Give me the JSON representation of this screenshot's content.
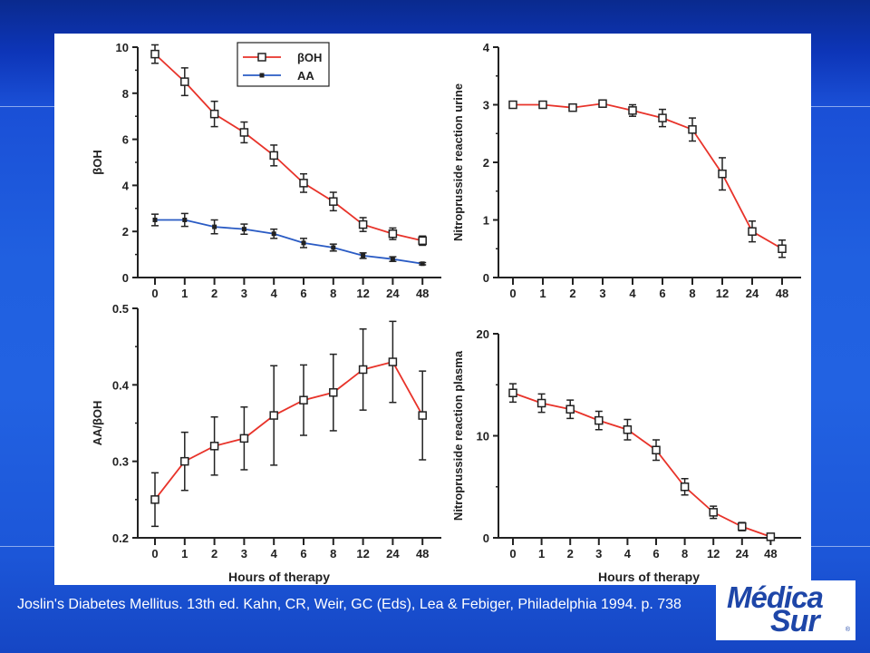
{
  "footer": {
    "citation": "Joslin's Diabetes Mellitus. 13th ed. Kahn, CR, Weir, GC (Eds), Lea & Febiger, Philadelphia 1994. p. 738"
  },
  "logo": {
    "line1": "Médica",
    "line2": "Sur",
    "mark": "®"
  },
  "colors": {
    "red": "#e8332a",
    "blue": "#2a5bc4",
    "axis": "#222222"
  },
  "chart_data": [
    {
      "id": "tl",
      "type": "line",
      "categories": [
        "0",
        "1",
        "2",
        "3",
        "4",
        "6",
        "8",
        "12",
        "24",
        "48"
      ],
      "ylabel": "βOH",
      "xlabel": "",
      "ylim": [
        0,
        10
      ],
      "yticks": [
        0,
        2,
        4,
        6,
        8,
        10
      ],
      "yticklabels": [
        "0",
        "2",
        "4",
        "6",
        "8",
        "10"
      ],
      "legend": "top-center",
      "series": [
        {
          "name": "βOH",
          "color": "red",
          "marker": "open-square",
          "values": [
            9.7,
            8.5,
            7.1,
            6.3,
            5.3,
            4.1,
            3.3,
            2.3,
            1.9,
            1.6
          ],
          "errors": [
            0.4,
            0.6,
            0.55,
            0.45,
            0.45,
            0.4,
            0.4,
            0.3,
            0.25,
            0.2
          ]
        },
        {
          "name": "AA",
          "color": "blue",
          "marker": "filled-square",
          "values": [
            2.5,
            2.5,
            2.2,
            2.1,
            1.9,
            1.5,
            1.3,
            0.95,
            0.8,
            0.6
          ],
          "errors": [
            0.25,
            0.28,
            0.3,
            0.22,
            0.2,
            0.2,
            0.15,
            0.12,
            0.1,
            0.05
          ]
        }
      ]
    },
    {
      "id": "tr",
      "type": "line",
      "categories": [
        "0",
        "1",
        "2",
        "3",
        "4",
        "6",
        "8",
        "12",
        "24",
        "48"
      ],
      "ylabel": "Nitroprusside reaction urine",
      "xlabel": "",
      "ylim": [
        0,
        4
      ],
      "yticks": [
        0,
        1,
        2,
        3,
        4
      ],
      "yticklabels": [
        "0",
        "1",
        "2",
        "3",
        "4"
      ],
      "series": [
        {
          "name": "",
          "color": "red",
          "marker": "open-square",
          "values": [
            3.0,
            3.0,
            2.95,
            3.02,
            2.9,
            2.77,
            2.57,
            1.8,
            0.8,
            0.5
          ],
          "errors": [
            0.03,
            0.03,
            0.04,
            0.05,
            0.1,
            0.15,
            0.2,
            0.28,
            0.18,
            0.15
          ]
        }
      ]
    },
    {
      "id": "bl",
      "type": "line",
      "categories": [
        "0",
        "1",
        "2",
        "3",
        "4",
        "6",
        "8",
        "12",
        "24",
        "48"
      ],
      "ylabel": "AA/βOH",
      "xlabel": "Hours of therapy",
      "ylim": [
        0.2,
        0.5
      ],
      "yticks": [
        0.2,
        0.3,
        0.4,
        0.5
      ],
      "yticklabels": [
        "0.2",
        "0.3",
        "0.4",
        "0.5"
      ],
      "series": [
        {
          "name": "",
          "color": "red",
          "marker": "open-square",
          "values": [
            0.25,
            0.3,
            0.32,
            0.33,
            0.36,
            0.38,
            0.39,
            0.42,
            0.43,
            0.36
          ],
          "errors": [
            0.035,
            0.038,
            0.038,
            0.041,
            0.065,
            0.046,
            0.05,
            0.053,
            0.053,
            0.058
          ]
        }
      ]
    },
    {
      "id": "br",
      "type": "line",
      "categories": [
        "0",
        "1",
        "2",
        "3",
        "4",
        "6",
        "8",
        "12",
        "24",
        "48"
      ],
      "ylabel": "Nitroprusside reaction plasma",
      "xlabel": "Hours of therapy",
      "ylim": [
        0,
        20
      ],
      "yticks": [
        0,
        10,
        20
      ],
      "yticklabels": [
        "0",
        "10",
        "20"
      ],
      "series": [
        {
          "name": "",
          "color": "red",
          "marker": "open-square",
          "values": [
            14.2,
            13.2,
            12.6,
            11.5,
            10.6,
            8.6,
            5.0,
            2.5,
            1.1,
            0.1
          ],
          "errors": [
            0.9,
            0.9,
            0.9,
            0.9,
            1.0,
            1.0,
            0.8,
            0.6,
            0.4,
            0.1
          ]
        }
      ]
    }
  ]
}
